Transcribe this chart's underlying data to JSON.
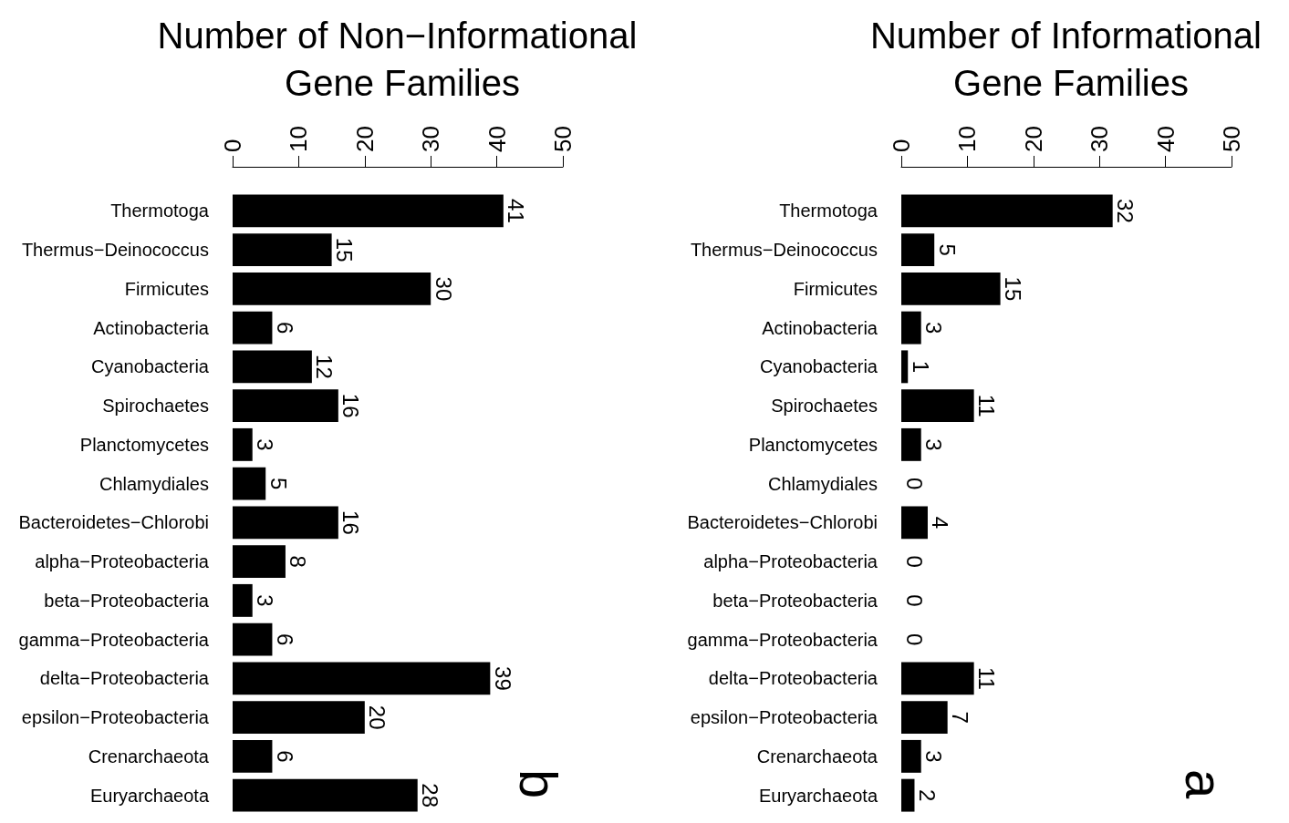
{
  "chart_data": [
    {
      "type": "bar",
      "orientation": "horizontal",
      "title": "Number of Non−Informational Gene Families",
      "categories": [
        "Thermotoga",
        "Thermus−Deinococcus",
        "Firmicutes",
        "Actinobacteria",
        "Cyanobacteria",
        "Spirochaetes",
        "Planctomycetes",
        "Chlamydiales",
        "Bacteroidetes−Chlorobi",
        "alpha−Proteobacteria",
        "beta−Proteobacteria",
        "gamma−Proteobacteria",
        "delta−Proteobacteria",
        "epsilon−Proteobacteria",
        "Crenarchaeota",
        "Euryarchaeota"
      ],
      "values": [
        41,
        15,
        30,
        6,
        12,
        16,
        3,
        5,
        16,
        8,
        3,
        6,
        39,
        20,
        6,
        28
      ],
      "color": "#000000",
      "xlim": [
        0,
        50
      ],
      "xticks": [
        0,
        10,
        20,
        30,
        40,
        50
      ],
      "data_labels": true,
      "grid": false,
      "annotations": [
        "b"
      ]
    },
    {
      "type": "bar",
      "orientation": "horizontal",
      "title": "Number of Informational Gene Families",
      "categories": [
        "Thermotoga",
        "Thermus−Deinococcus",
        "Firmicutes",
        "Actinobacteria",
        "Cyanobacteria",
        "Spirochaetes",
        "Planctomycetes",
        "Chlamydiales",
        "Bacteroidetes−Chlorobi",
        "alpha−Proteobacteria",
        "beta−Proteobacteria",
        "gamma−Proteobacteria",
        "delta−Proteobacteria",
        "epsilon−Proteobacteria",
        "Crenarchaeota",
        "Euryarchaeota"
      ],
      "values": [
        32,
        5,
        15,
        3,
        1,
        11,
        3,
        0,
        4,
        0,
        0,
        0,
        11,
        7,
        3,
        2
      ],
      "color": "#000000",
      "xlim": [
        0,
        50
      ],
      "xticks": [
        0,
        10,
        20,
        30,
        40,
        50
      ],
      "data_labels": true,
      "grid": false,
      "annotations": [
        "a"
      ]
    }
  ]
}
